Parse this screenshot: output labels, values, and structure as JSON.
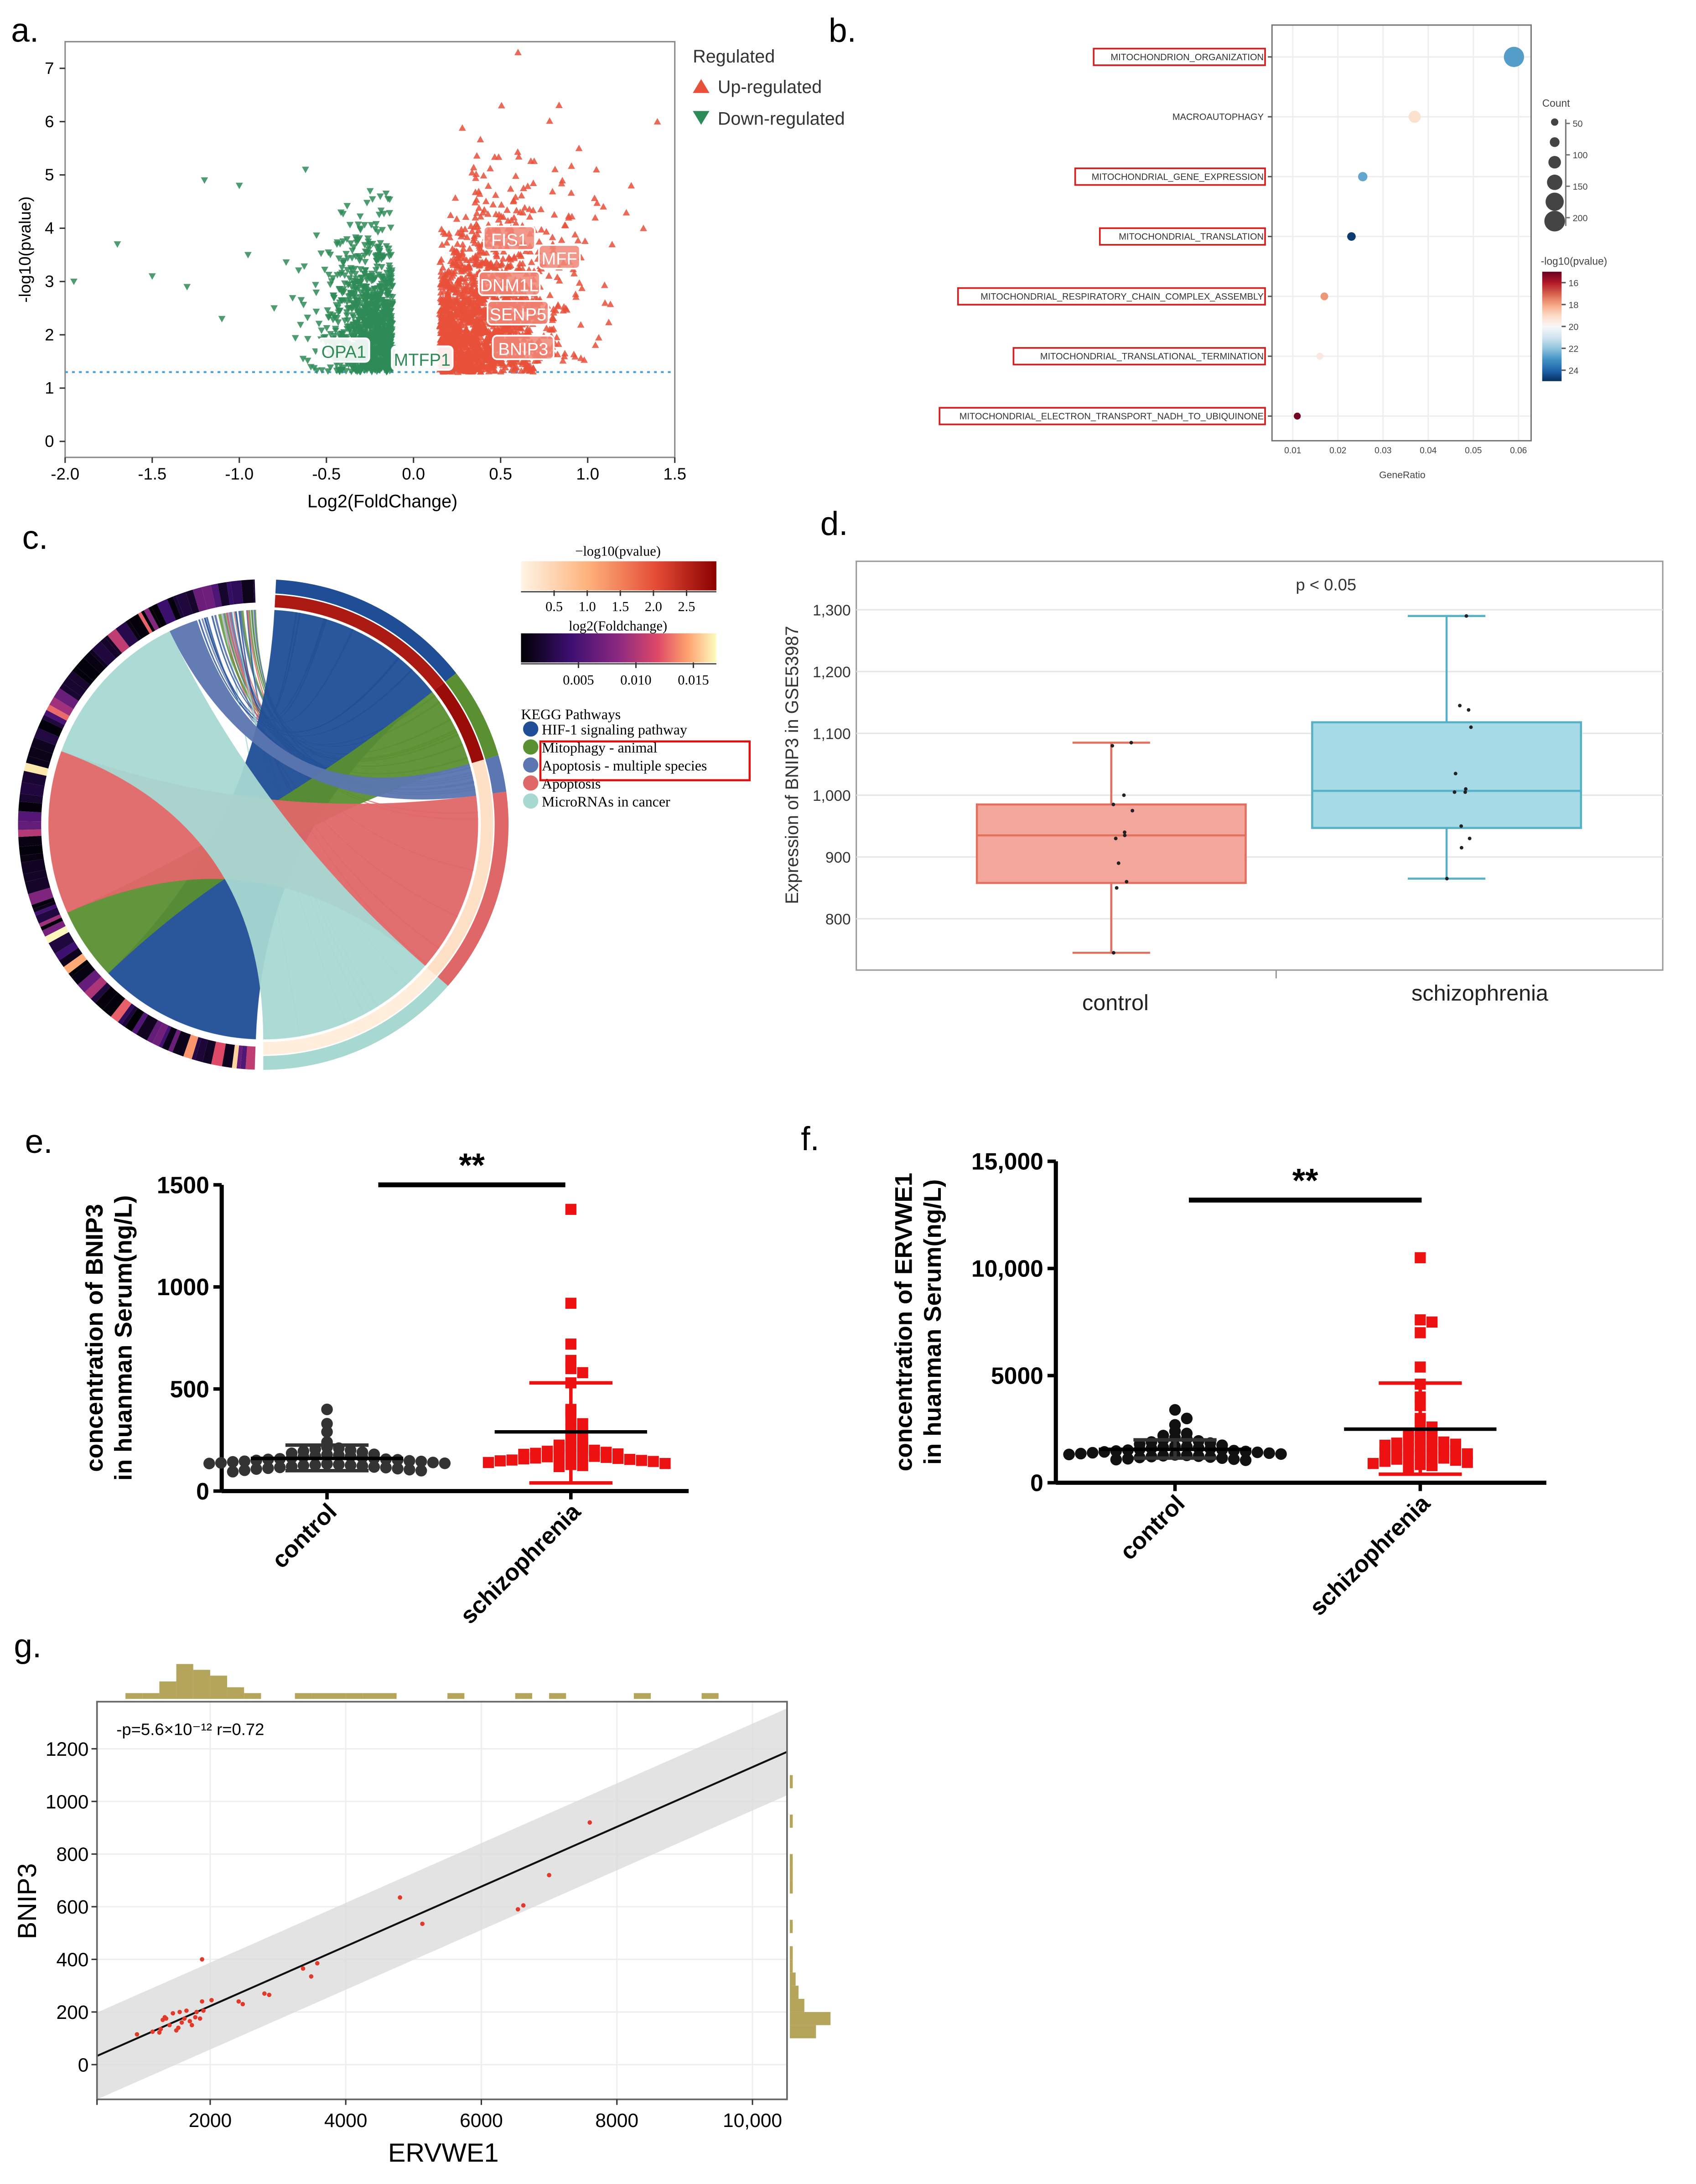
{
  "panels": {
    "a": "a.",
    "b": "b.",
    "c": "c.",
    "d": "d.",
    "e": "e.",
    "f": "f.",
    "g": "g."
  },
  "chart_data": [
    {
      "id": "a",
      "type": "scatter",
      "title": "",
      "xlabel": "Log2(FoldChange)",
      "ylabel": "-log10(pvalue)",
      "xlim": [
        -2.0,
        1.5
      ],
      "ylim": [
        -0.3,
        7.5
      ],
      "xticks": [
        -2.0,
        -1.5,
        -1.0,
        -0.5,
        0.0,
        0.5,
        1.0,
        1.5
      ],
      "xtick_labels": [
        "-2.0",
        "-1.5",
        "-1.0",
        "-0.5",
        "0.0",
        "0.5",
        "1.0",
        "1.5"
      ],
      "yticks": [
        0,
        1,
        2,
        3,
        4,
        5,
        6,
        7
      ],
      "ytick_labels": [
        "0",
        "1",
        "2",
        "3",
        "4",
        "5",
        "6",
        "7"
      ],
      "threshold_y": 1.3,
      "legend_title": "Regulated",
      "legend": [
        {
          "label": "Up-regulated",
          "color": "#e8503a"
        },
        {
          "label": "Down-regulated",
          "color": "#2e8b57"
        }
      ],
      "outliers_down": [
        [
          -1.95,
          3.0
        ],
        [
          -1.7,
          3.7
        ],
        [
          -1.5,
          3.1
        ],
        [
          -1.3,
          2.9
        ],
        [
          -1.2,
          4.9
        ],
        [
          -1.0,
          4.8
        ],
        [
          -0.95,
          3.5
        ],
        [
          -0.62,
          5.1
        ],
        [
          -0.8,
          2.5
        ],
        [
          -1.1,
          2.3
        ]
      ],
      "outliers_up": [
        [
          0.6,
          7.3
        ],
        [
          1.4,
          6.0
        ],
        [
          1.05,
          5.1
        ],
        [
          1.25,
          4.8
        ],
        [
          1.32,
          4.0
        ],
        [
          0.95,
          5.5
        ]
      ],
      "gene_labels": [
        {
          "gene": "FIS1",
          "x": 0.55,
          "y": 3.8,
          "dir": "up"
        },
        {
          "gene": "MFF",
          "x": 0.75,
          "y": 3.45,
          "dir": "up"
        },
        {
          "gene": "DNM1L",
          "x": 0.55,
          "y": 2.95,
          "dir": "up"
        },
        {
          "gene": "SENP5",
          "x": 0.6,
          "y": 2.4,
          "dir": "up"
        },
        {
          "gene": "BNIP3",
          "x": 0.63,
          "y": 1.75,
          "dir": "up"
        },
        {
          "gene": "OPA1",
          "x": -0.4,
          "y": 1.7,
          "dir": "down"
        },
        {
          "gene": "MTFP1",
          "x": 0.05,
          "y": 1.55,
          "dir": "down"
        }
      ]
    },
    {
      "id": "b",
      "type": "scatter",
      "xlabel": "GeneRatio",
      "xlim": [
        0.0054,
        0.0628
      ],
      "xticks": [
        0.01,
        0.02,
        0.03,
        0.04,
        0.05,
        0.06
      ],
      "xtick_labels": [
        "0.01",
        "0.02",
        "0.03",
        "0.04",
        "0.05",
        "0.06"
      ],
      "terms": [
        {
          "name": "MITOCHONDRION_ORGANIZATION",
          "gene_ratio": 0.059,
          "count": 210,
          "neg_log10_p": 22.8,
          "boxed": true
        },
        {
          "name": "MACROAUTOPHAGY",
          "gene_ratio": 0.037,
          "count": 110,
          "neg_log10_p": 19.2,
          "boxed": false
        },
        {
          "name": "MITOCHONDRIAL_GENE_EXPRESSION",
          "gene_ratio": 0.0255,
          "count": 75,
          "neg_log10_p": 22.6,
          "boxed": true
        },
        {
          "name": "MITOCHONDRIAL_TRANSLATION",
          "gene_ratio": 0.023,
          "count": 65,
          "neg_log10_p": 24.8,
          "boxed": true
        },
        {
          "name": "MITOCHONDRIAL_RESPIRATORY_CHAIN_COMPLEX_ASSEMBLY",
          "gene_ratio": 0.017,
          "count": 55,
          "neg_log10_p": 17.8,
          "boxed": true
        },
        {
          "name": "MITOCHONDRIAL_TRANSLATIONAL_TERMINATION",
          "gene_ratio": 0.016,
          "count": 45,
          "neg_log10_p": 19.5,
          "boxed": true
        },
        {
          "name": "MITOCHONDRIAL_ELECTRON_TRANSPORT_NADH_TO_UBIQUINONE",
          "gene_ratio": 0.011,
          "count": 45,
          "neg_log10_p": 15.2,
          "boxed": true
        }
      ],
      "size_legend_title": "Count",
      "size_legend": [
        50,
        100,
        150,
        200
      ],
      "size_legend_labels": [
        "50",
        "100",
        "150",
        "200"
      ],
      "color_legend_title": "-log10(pvalue)",
      "color_range": [
        15,
        25
      ],
      "color_ticks": [
        16,
        18,
        20,
        22,
        24
      ],
      "color_tick_labels": [
        "16",
        "18",
        "20",
        "22",
        "24"
      ]
    },
    {
      "id": "c",
      "type": "chord",
      "pvalue_bar_title": "−log10(pvalue)",
      "pvalue_range": [
        0,
        2.95
      ],
      "pvalue_ticks": [
        0.5,
        1.0,
        1.5,
        2.0,
        2.5
      ],
      "pvalue_tick_labels": [
        "0.5",
        "1.0",
        "1.5",
        "2.0",
        "2.5"
      ],
      "fc_bar_title": "log2(Foldchange)",
      "fc_range": [
        0,
        0.017
      ],
      "fc_ticks": [
        0.005,
        0.01,
        0.015
      ],
      "fc_tick_labels": [
        "0.005",
        "0.010",
        "0.015"
      ],
      "legend_title": "KEGG Pathways",
      "pathways": [
        {
          "name": "HIF-1 signaling pathway",
          "color": "#1f4e96",
          "links": 45,
          "neg_log10_p": 2.6,
          "highlight": false
        },
        {
          "name": "Mitophagy - animal",
          "color": "#5a8f32",
          "links": 20,
          "neg_log10_p": 2.8,
          "highlight": true
        },
        {
          "name": "Apoptosis - multiple species",
          "color": "#5b76b0",
          "links": 8,
          "neg_log10_p": 0.3,
          "highlight": true
        },
        {
          "name": "Apoptosis",
          "color": "#e06767",
          "links": 45,
          "neg_log10_p": 0.3,
          "highlight": false
        },
        {
          "name": "MicroRNAs in cancer",
          "color": "#a8d8d2",
          "links": 45,
          "neg_log10_p": 0.1,
          "highlight": false
        }
      ]
    },
    {
      "id": "d",
      "type": "box",
      "annotation": "p < 0.05",
      "ylabel": "Expression of BNIP3 in GSE53987",
      "ylim": [
        700,
        1350
      ],
      "yticks": [
        800,
        900,
        1000,
        1100,
        1200,
        1300
      ],
      "ytick_labels": [
        "800",
        "900",
        "1,000",
        "1,100",
        "1,200",
        "1,300"
      ],
      "groups": [
        {
          "name": "control",
          "min": 745,
          "q1": 858,
          "median": 935,
          "q3": 985,
          "max": 1085,
          "fill": "#f3a79c",
          "stroke": "#e2705f",
          "points": [
            1085,
            1080,
            1000,
            985,
            975,
            940,
            935,
            930,
            890,
            860,
            850,
            745
          ]
        },
        {
          "name": "schizophrenia",
          "min": 865,
          "q1": 947,
          "median": 1007,
          "q3": 1118,
          "max": 1290,
          "fill": "#a6dae6",
          "stroke": "#55b0c8",
          "points": [
            1290,
            1145,
            1138,
            1110,
            1035,
            1010,
            1005,
            1005,
            950,
            930,
            915,
            865
          ]
        }
      ]
    },
    {
      "id": "e",
      "type": "dot",
      "ylabel": [
        "concentration of BNIP3",
        "in huanman Serum(ng/L)"
      ],
      "ylim": [
        0,
        1500
      ],
      "yticks": [
        0,
        500,
        1000,
        1500
      ],
      "ytick_labels": [
        "0",
        "500",
        "1000",
        "1500"
      ],
      "significance": "**",
      "groups": [
        {
          "name": "control",
          "color": "#333333",
          "marker": "circle",
          "mean": 160,
          "sd_low": 100,
          "sd_high": 225,
          "values": [
            400,
            330,
            290,
            240,
            215,
            210,
            205,
            200,
            195,
            190,
            185,
            180,
            178,
            175,
            172,
            170,
            168,
            165,
            163,
            160,
            158,
            156,
            155,
            153,
            150,
            148,
            146,
            145,
            143,
            140,
            138,
            136,
            135,
            133,
            130,
            128,
            126,
            125,
            123,
            120,
            118,
            116,
            115,
            112,
            110,
            108,
            105,
            102,
            100,
            95
          ]
        },
        {
          "name": "schizophrenia",
          "color": "#ee1111",
          "marker": "square",
          "mean": 290,
          "sd_low": 40,
          "sd_high": 530,
          "values": [
            1380,
            920,
            720,
            640,
            600,
            580,
            530,
            400,
            390,
            350,
            330,
            300,
            280,
            260,
            230,
            225,
            220,
            215,
            210,
            200,
            195,
            190,
            185,
            182,
            180,
            178,
            175,
            172,
            170,
            168,
            165,
            162,
            160,
            158,
            155,
            152,
            150,
            148,
            145,
            140,
            135,
            130,
            125,
            120
          ]
        }
      ]
    },
    {
      "id": "f",
      "type": "dot",
      "ylabel": [
        "concentration of ERVWE1",
        "in huanman Serum(ng/L)"
      ],
      "ylim": [
        0,
        15000
      ],
      "yticks": [
        0,
        5000,
        10000,
        15000
      ],
      "ytick_labels": [
        "0",
        "5000",
        "10,000",
        "15,000"
      ],
      "significance": "**",
      "groups": [
        {
          "name": "control",
          "color": "#111111",
          "marker": "circle",
          "mean": 1560,
          "sd_low": 1150,
          "sd_high": 2000,
          "values": [
            3400,
            3000,
            2700,
            2400,
            2300,
            2200,
            2100,
            2050,
            2000,
            1950,
            1900,
            1850,
            1800,
            1750,
            1700,
            1680,
            1650,
            1620,
            1600,
            1580,
            1560,
            1540,
            1520,
            1500,
            1480,
            1460,
            1440,
            1420,
            1400,
            1380,
            1360,
            1340,
            1320,
            1300,
            1280,
            1260,
            1240,
            1220,
            1200,
            1180,
            1150,
            1120,
            1100,
            1080,
            1050
          ]
        },
        {
          "name": "schizophrenia",
          "color": "#ee1111",
          "marker": "square",
          "mean": 2500,
          "sd_low": 400,
          "sd_high": 4650,
          "values": [
            10500,
            7600,
            7500,
            7000,
            5400,
            4600,
            4000,
            3600,
            3000,
            2800,
            2600,
            2400,
            2300,
            2200,
            2100,
            2000,
            1950,
            1900,
            1850,
            1800,
            1750,
            1700,
            1650,
            1600,
            1550,
            1500,
            1450,
            1400,
            1350,
            1300,
            1250,
            1200,
            1150,
            1100,
            1050,
            1000,
            950,
            900,
            850,
            800,
            700
          ]
        }
      ]
    },
    {
      "id": "g",
      "type": "scatter",
      "annotation": "-p=5.6×10⁻¹² r=0.72",
      "xlabel": "ERVWE1",
      "ylabel": "BNIP3",
      "xlim": [
        330,
        10510
      ],
      "ylim": [
        -132,
        1379
      ],
      "xticks": [
        2000,
        4000,
        6000,
        8000,
        10000
      ],
      "xtick_labels": [
        "2000",
        "4000",
        "6000",
        "8000",
        "10,000"
      ],
      "yticks": [
        0,
        200,
        400,
        600,
        800,
        1000,
        1200
      ],
      "ytick_labels": [
        "0",
        "200",
        "400",
        "600",
        "800",
        "1000",
        "1200"
      ],
      "fit": {
        "slope": 0.1135,
        "intercept": -4.5,
        "ci_halfwidth": 165
      },
      "points": [
        [
          920,
          115
        ],
        [
          1150,
          125
        ],
        [
          1250,
          122
        ],
        [
          1270,
          135
        ],
        [
          1300,
          170
        ],
        [
          1330,
          180
        ],
        [
          1350,
          175
        ],
        [
          1400,
          150
        ],
        [
          1450,
          195
        ],
        [
          1550,
          200
        ],
        [
          1500,
          130
        ],
        [
          1530,
          140
        ],
        [
          1580,
          160
        ],
        [
          1620,
          175
        ],
        [
          1650,
          205
        ],
        [
          1700,
          165
        ],
        [
          1730,
          150
        ],
        [
          1780,
          180
        ],
        [
          1800,
          200
        ],
        [
          1850,
          175
        ],
        [
          1880,
          240
        ],
        [
          1900,
          205
        ],
        [
          1880,
          400
        ],
        [
          2020,
          245
        ],
        [
          2420,
          240
        ],
        [
          2480,
          230
        ],
        [
          2800,
          270
        ],
        [
          2870,
          265
        ],
        [
          3370,
          365
        ],
        [
          3490,
          335
        ],
        [
          3580,
          385
        ],
        [
          4800,
          635
        ],
        [
          5130,
          535
        ],
        [
          6540,
          590
        ],
        [
          6620,
          605
        ],
        [
          7000,
          720
        ],
        [
          7600,
          920
        ]
      ],
      "x_hist": {
        "bin_start": 500,
        "bin_width": 250,
        "counts": [
          0,
          1,
          1,
          3,
          6,
          5,
          4,
          2,
          1,
          0,
          0,
          1,
          1,
          1,
          1,
          1,
          1,
          0,
          0,
          0,
          1,
          0,
          0,
          0,
          1,
          0,
          1,
          0,
          0,
          0,
          0,
          1,
          0,
          0,
          0,
          1,
          0,
          0,
          0,
          0
        ]
      },
      "y_hist": {
        "bin_start": 100,
        "bin_width": 50,
        "counts": [
          9,
          14,
          5,
          3,
          2,
          1,
          1,
          0,
          1,
          0,
          0,
          1,
          1,
          1,
          0,
          0,
          1,
          0,
          0,
          1
        ]
      },
      "hist_color": "#b5a55a"
    }
  ]
}
